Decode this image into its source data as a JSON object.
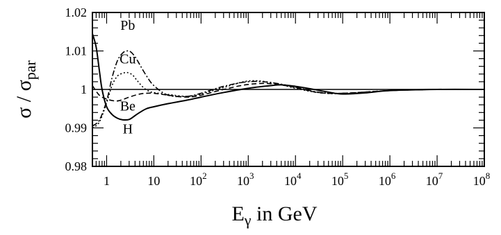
{
  "chart_data": {
    "type": "line",
    "title": "",
    "xlabel": {
      "main": "E",
      "sub": "γ",
      "rest": " in GeV"
    },
    "ylabel": {
      "main": "σ / σ",
      "sub": "par"
    },
    "x_scale": "log",
    "xlim": [
      0.5,
      100000000
    ],
    "ylim": [
      0.98,
      1.02
    ],
    "y_ticks": [
      {
        "value": 0.98,
        "label": "0.98"
      },
      {
        "value": 0.99,
        "label": "0.99"
      },
      {
        "value": 1.0,
        "label": "1"
      },
      {
        "value": 1.01,
        "label": "1.01"
      },
      {
        "value": 1.02,
        "label": "1.02"
      }
    ],
    "x_ticks": [
      {
        "value": 1,
        "base": "1",
        "exp": ""
      },
      {
        "value": 10,
        "base": "10",
        "exp": ""
      },
      {
        "value": 100,
        "base": "10",
        "exp": "2"
      },
      {
        "value": 1000,
        "base": "10",
        "exp": "3"
      },
      {
        "value": 10000,
        "base": "10",
        "exp": "4"
      },
      {
        "value": 100000,
        "base": "10",
        "exp": "5"
      },
      {
        "value": 1000000,
        "base": "10",
        "exp": "6"
      },
      {
        "value": 10000000,
        "base": "10",
        "exp": "7"
      },
      {
        "value": 100000000,
        "base": "10",
        "exp": "8"
      }
    ],
    "reference_line": 1.0,
    "grid": false,
    "legend": "none",
    "annotations": [
      {
        "text": "Pb",
        "x": 2.8,
        "y": 1.0155
      },
      {
        "text": "Cu",
        "x": 2.8,
        "y": 1.0068
      },
      {
        "text": "Be",
        "x": 2.8,
        "y": 0.9945
      },
      {
        "text": "H",
        "x": 2.8,
        "y": 0.9886
      }
    ],
    "series": [
      {
        "name": "H",
        "style": "solid",
        "x": [
          0.5,
          0.6,
          0.7,
          0.8,
          1,
          1.3,
          1.7,
          2.2,
          3,
          4,
          5,
          7,
          10,
          20,
          50,
          100,
          300,
          1000,
          3000,
          5000,
          10000,
          20000,
          50000,
          100000,
          300000,
          1000000,
          10000000,
          100000000
        ],
        "y": [
          1.0145,
          1.011,
          1.005,
          1.0,
          0.9955,
          0.9935,
          0.9925,
          0.9921,
          0.9922,
          0.9932,
          0.994,
          0.995,
          0.9955,
          0.9963,
          0.9972,
          0.998,
          0.9992,
          1.0003,
          1.001,
          1.0012,
          1.0008,
          1.0002,
          0.9993,
          0.9988,
          0.9991,
          0.9997,
          1.0,
          1.0
        ]
      },
      {
        "name": "Pb",
        "style": "dashdot",
        "x": [
          0.5,
          0.7,
          1,
          1.3,
          1.7,
          2.2,
          2.7,
          3.2,
          4,
          5,
          7,
          10,
          20,
          50,
          100,
          300,
          1000,
          3000,
          10000,
          30000,
          100000,
          1000000,
          10000000,
          100000000
        ],
        "y": [
          0.9905,
          0.992,
          0.997,
          1.003,
          1.0075,
          1.0095,
          1.01,
          1.0098,
          1.0085,
          1.0065,
          1.0035,
          1.001,
          0.9985,
          0.9982,
          0.999,
          1.0008,
          1.002,
          1.0018,
          1.0006,
          0.9993,
          0.999,
          0.9997,
          1.0,
          1.0
        ]
      },
      {
        "name": "Cu",
        "style": "dotted",
        "x": [
          0.5,
          0.7,
          1,
          1.3,
          1.7,
          2.2,
          2.7,
          3.5,
          4.5,
          6,
          8,
          10,
          20,
          50,
          100,
          300,
          1000,
          3000,
          10000,
          30000,
          100000,
          1000000,
          10000000,
          100000000
        ],
        "y": [
          0.99,
          0.9915,
          0.9965,
          1.001,
          1.0035,
          1.0042,
          1.0044,
          1.0038,
          1.0022,
          1.0005,
          0.9995,
          0.9992,
          0.9987,
          0.9982,
          0.9988,
          1.0005,
          1.0022,
          1.0018,
          1.0003,
          0.9992,
          0.9989,
          0.9997,
          1.0,
          1.0
        ]
      },
      {
        "name": "Be",
        "style": "dashed",
        "x": [
          0.5,
          0.7,
          1,
          1.5,
          2,
          3,
          5,
          7,
          10,
          20,
          50,
          100,
          300,
          1000,
          3000,
          10000,
          30000,
          100000,
          1000000,
          10000000,
          100000000
        ],
        "y": [
          1.001,
          0.9985,
          0.9975,
          0.997,
          0.9972,
          0.998,
          0.9988,
          0.999,
          0.999,
          0.9985,
          0.998,
          0.9985,
          1.0,
          1.0013,
          1.0015,
          1.0005,
          0.9992,
          0.999,
          0.9997,
          1.0,
          1.0
        ]
      }
    ]
  }
}
